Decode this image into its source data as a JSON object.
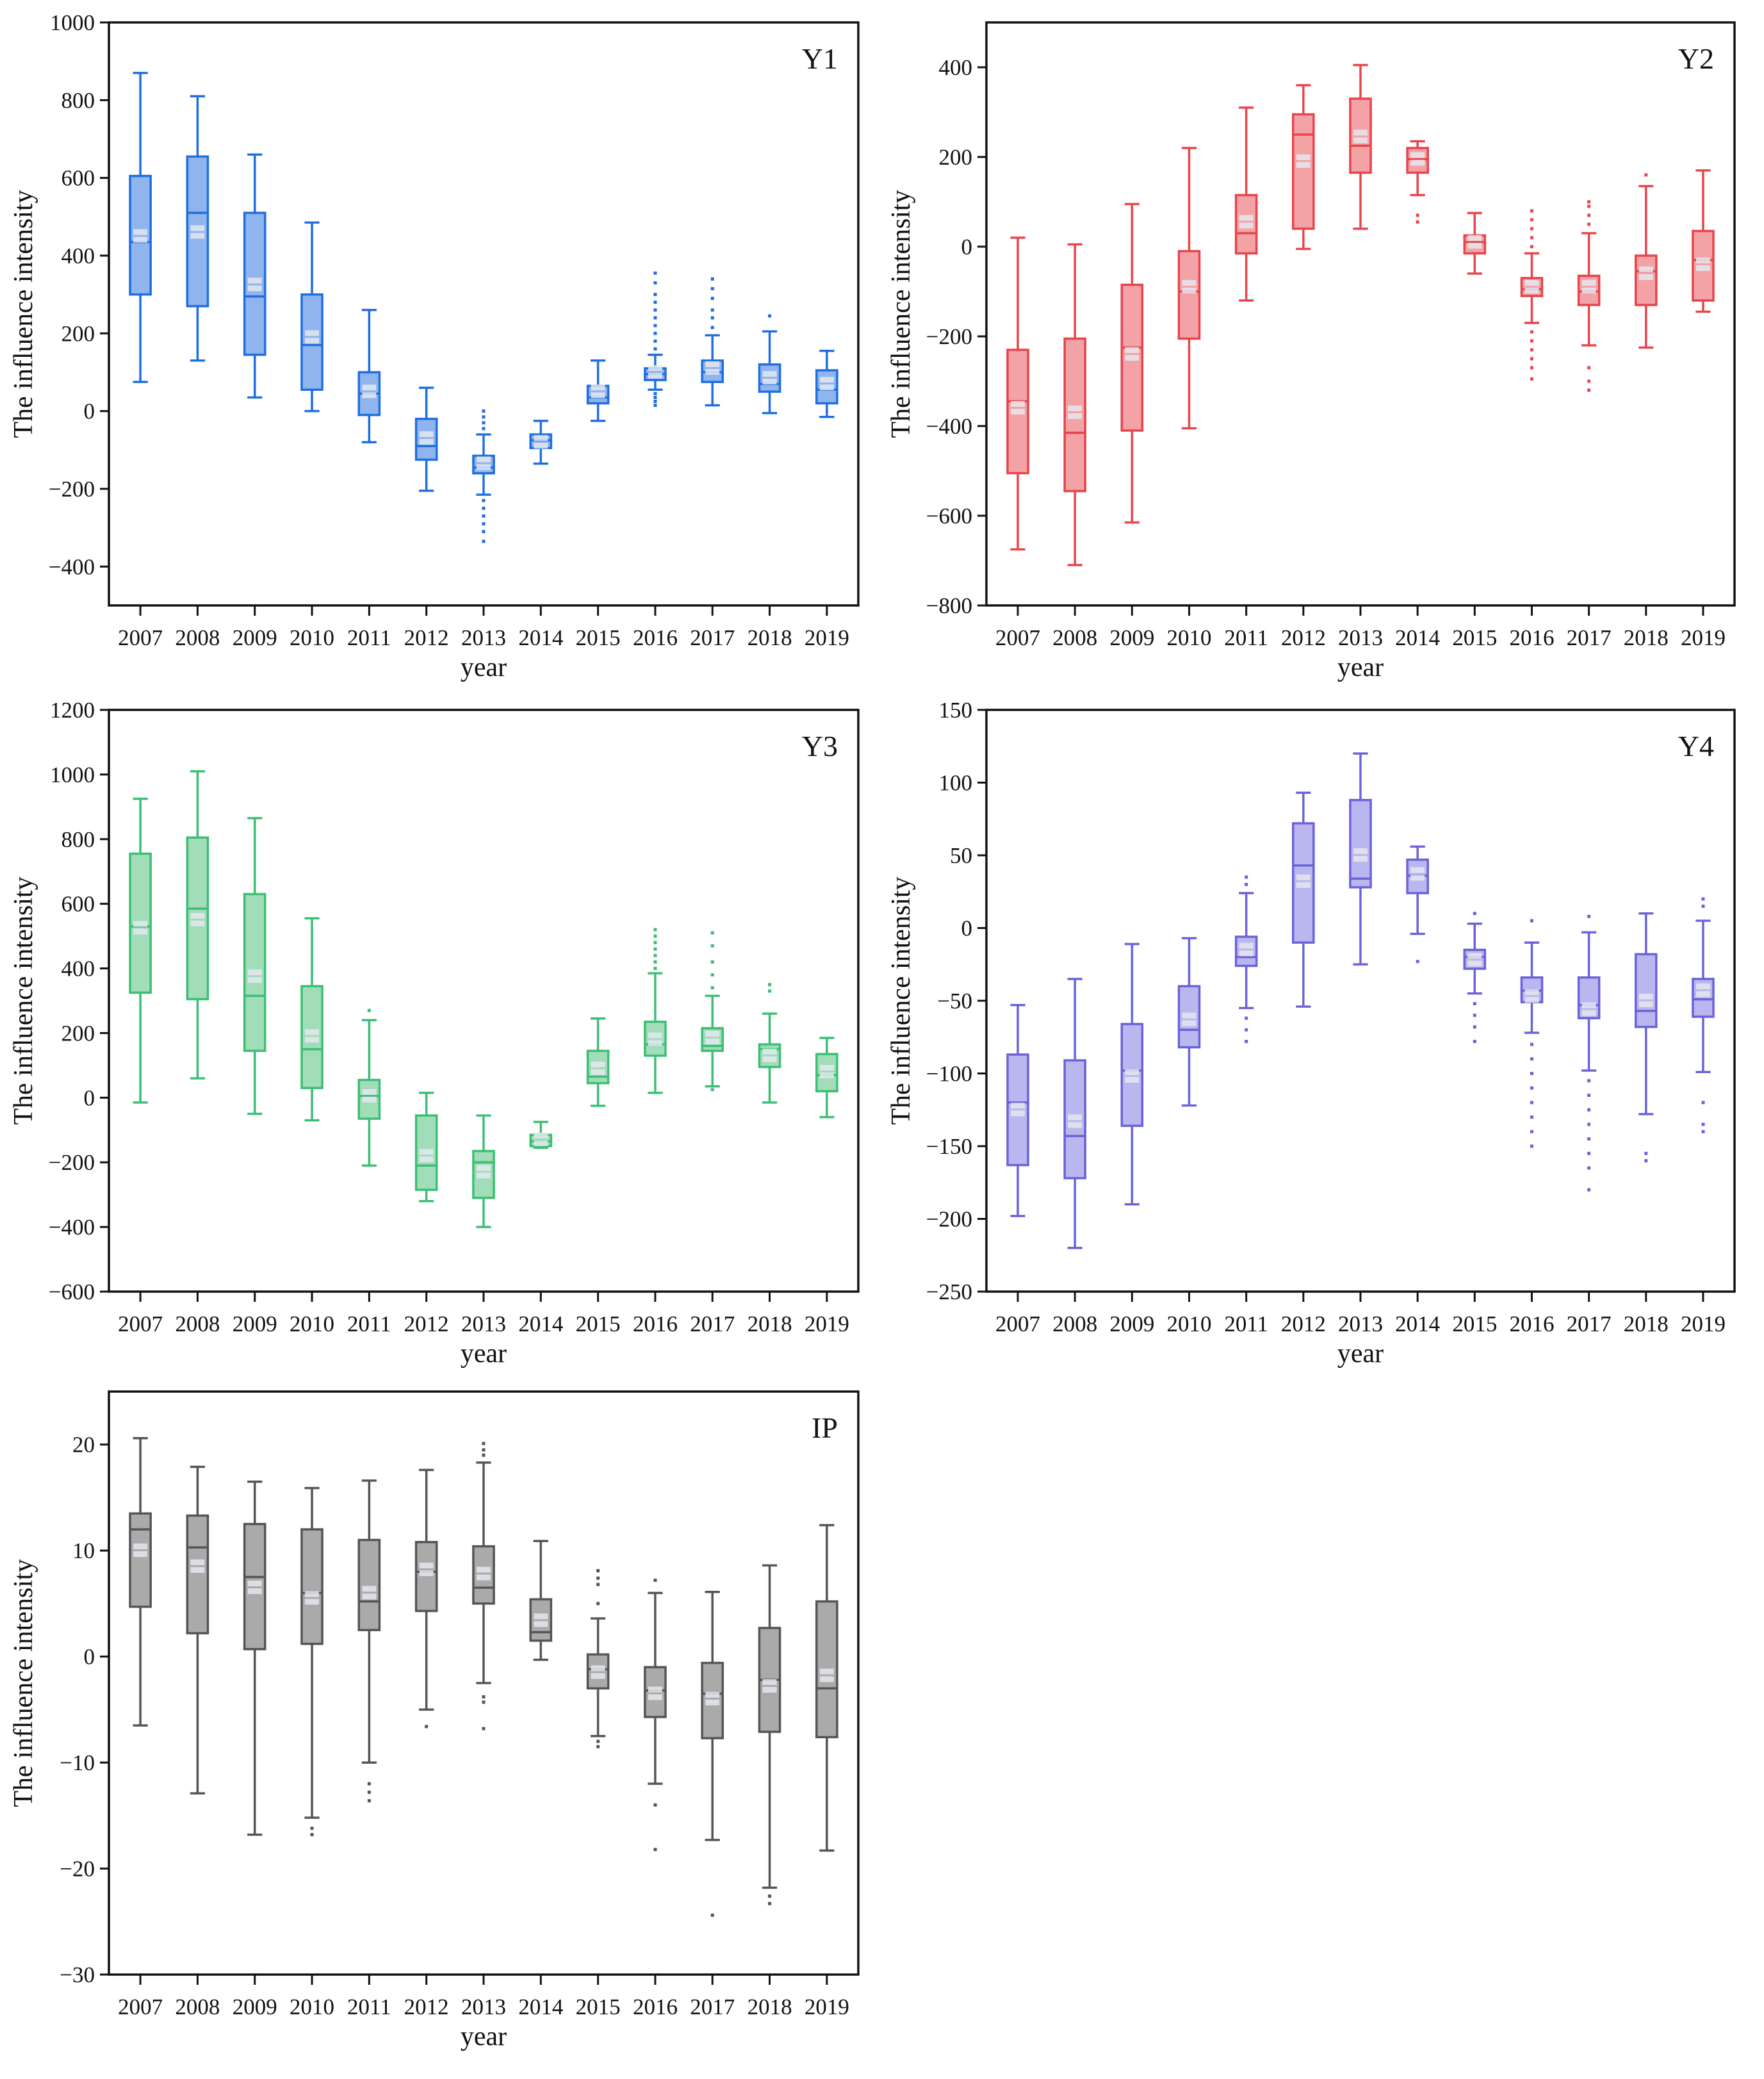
{
  "chart_data": [
    {
      "type": "boxplot",
      "title": "Y1",
      "xlabel": "year",
      "ylabel": "The influence intensity",
      "ylim": [
        -500,
        1000
      ],
      "yticks": [
        -400,
        -200,
        0,
        200,
        400,
        600,
        800,
        1000
      ],
      "color": "#1f6fe0",
      "fill": "#8fb4ee",
      "categories": [
        "2007",
        "2008",
        "2009",
        "2010",
        "2011",
        "2012",
        "2013",
        "2014",
        "2015",
        "2016",
        "2017",
        "2018",
        "2019"
      ],
      "boxes": [
        {
          "min": 75,
          "q1": 300,
          "median": 435,
          "q3": 605,
          "max": 870,
          "mean": 450,
          "outliers": []
        },
        {
          "min": 130,
          "q1": 270,
          "median": 510,
          "q3": 655,
          "max": 810,
          "mean": 460,
          "outliers": []
        },
        {
          "min": 35,
          "q1": 145,
          "median": 295,
          "q3": 510,
          "max": 660,
          "mean": 325,
          "outliers": []
        },
        {
          "min": 0,
          "q1": 55,
          "median": 170,
          "q3": 300,
          "max": 485,
          "mean": 190,
          "outliers": []
        },
        {
          "min": -80,
          "q1": -10,
          "median": 45,
          "q3": 100,
          "max": 260,
          "mean": 50,
          "outliers": []
        },
        {
          "min": -205,
          "q1": -125,
          "median": -90,
          "q3": -20,
          "max": 60,
          "mean": -70,
          "outliers": []
        },
        {
          "min": -215,
          "q1": -160,
          "median": -145,
          "q3": -115,
          "max": -60,
          "mean": -135,
          "outliers": [
            -230,
            -250,
            -270,
            -290,
            -310,
            -335,
            -45,
            -30,
            -15,
            0
          ]
        },
        {
          "min": -135,
          "q1": -95,
          "median": -75,
          "q3": -60,
          "max": -25,
          "mean": -80,
          "outliers": []
        },
        {
          "min": -25,
          "q1": 20,
          "median": 35,
          "q3": 65,
          "max": 130,
          "mean": 50,
          "outliers": []
        },
        {
          "min": 55,
          "q1": 80,
          "median": 95,
          "q3": 110,
          "max": 145,
          "mean": 100,
          "outliers": [
            160,
            180,
            200,
            220,
            240,
            260,
            280,
            300,
            330,
            355,
            45,
            35,
            25,
            15
          ]
        },
        {
          "min": 15,
          "q1": 75,
          "median": 100,
          "q3": 130,
          "max": 195,
          "mean": 110,
          "outliers": [
            215,
            240,
            260,
            290,
            315,
            340
          ]
        },
        {
          "min": -5,
          "q1": 50,
          "median": 70,
          "q3": 120,
          "max": 205,
          "mean": 85,
          "outliers": [
            245
          ]
        },
        {
          "min": -15,
          "q1": 20,
          "median": 55,
          "q3": 105,
          "max": 155,
          "mean": 70,
          "outliers": []
        }
      ]
    },
    {
      "type": "boxplot",
      "title": "Y2",
      "xlabel": "year",
      "ylabel": "The influence intensity",
      "ylim": [
        -800,
        500
      ],
      "yticks": [
        -800,
        -600,
        -400,
        -200,
        0,
        200,
        400
      ],
      "color": "#e8444c",
      "fill": "#f3a2a6",
      "categories": [
        "2007",
        "2008",
        "2009",
        "2010",
        "2011",
        "2012",
        "2013",
        "2014",
        "2015",
        "2016",
        "2017",
        "2018",
        "2019"
      ],
      "boxes": [
        {
          "min": -675,
          "q1": -505,
          "median": -345,
          "q3": -230,
          "max": 20,
          "mean": -360,
          "outliers": []
        },
        {
          "min": -710,
          "q1": -545,
          "median": -415,
          "q3": -205,
          "max": 5,
          "mean": -370,
          "outliers": []
        },
        {
          "min": -615,
          "q1": -410,
          "median": -225,
          "q3": -85,
          "max": 95,
          "mean": -240,
          "outliers": []
        },
        {
          "min": -405,
          "q1": -205,
          "median": -100,
          "q3": -10,
          "max": 220,
          "mean": -90,
          "outliers": []
        },
        {
          "min": -120,
          "q1": -15,
          "median": 30,
          "q3": 115,
          "max": 310,
          "mean": 55,
          "outliers": []
        },
        {
          "min": -5,
          "q1": 40,
          "median": 250,
          "q3": 295,
          "max": 360,
          "mean": 190,
          "outliers": []
        },
        {
          "min": 40,
          "q1": 165,
          "median": 225,
          "q3": 330,
          "max": 405,
          "mean": 245,
          "outliers": []
        },
        {
          "min": 115,
          "q1": 165,
          "median": 195,
          "q3": 220,
          "max": 235,
          "mean": 195,
          "outliers": [
            70,
            55
          ]
        },
        {
          "min": -60,
          "q1": -15,
          "median": 10,
          "q3": 25,
          "max": 75,
          "mean": 10,
          "outliers": []
        },
        {
          "min": -170,
          "q1": -110,
          "median": -95,
          "q3": -70,
          "max": -15,
          "mean": -90,
          "outliers": [
            -190,
            -210,
            -230,
            -250,
            -270,
            -295,
            0,
            20,
            40,
            60,
            80
          ]
        },
        {
          "min": -220,
          "q1": -130,
          "median": -100,
          "q3": -65,
          "max": 30,
          "mean": -90,
          "outliers": [
            -270,
            -300,
            -320,
            50,
            70,
            90,
            100
          ]
        },
        {
          "min": -225,
          "q1": -130,
          "median": -55,
          "q3": -20,
          "max": 135,
          "mean": -60,
          "outliers": [
            160
          ]
        },
        {
          "min": -145,
          "q1": -120,
          "median": -30,
          "q3": 35,
          "max": 170,
          "mean": -40,
          "outliers": []
        }
      ]
    },
    {
      "type": "boxplot",
      "title": "Y3",
      "xlabel": "year",
      "ylabel": "The influence intensity",
      "ylim": [
        -600,
        1200
      ],
      "yticks": [
        -600,
        -400,
        -200,
        0,
        200,
        400,
        600,
        800,
        1000,
        1200
      ],
      "color": "#3cbf74",
      "fill": "#a0ddb8",
      "categories": [
        "2007",
        "2008",
        "2009",
        "2010",
        "2011",
        "2012",
        "2013",
        "2014",
        "2015",
        "2016",
        "2017",
        "2018",
        "2019"
      ],
      "boxes": [
        {
          "min": -15,
          "q1": 325,
          "median": 530,
          "q3": 755,
          "max": 925,
          "mean": 525,
          "outliers": []
        },
        {
          "min": 60,
          "q1": 305,
          "median": 585,
          "q3": 805,
          "max": 1010,
          "mean": 550,
          "outliers": []
        },
        {
          "min": -50,
          "q1": 145,
          "median": 315,
          "q3": 630,
          "max": 865,
          "mean": 375,
          "outliers": []
        },
        {
          "min": -70,
          "q1": 30,
          "median": 150,
          "q3": 345,
          "max": 555,
          "mean": 190,
          "outliers": []
        },
        {
          "min": -210,
          "q1": -65,
          "median": 5,
          "q3": 55,
          "max": 240,
          "mean": 5,
          "outliers": [
            270
          ]
        },
        {
          "min": -320,
          "q1": -285,
          "median": -210,
          "q3": -55,
          "max": 15,
          "mean": -180,
          "outliers": []
        },
        {
          "min": -400,
          "q1": -310,
          "median": -200,
          "q3": -165,
          "max": -55,
          "mean": -230,
          "outliers": []
        },
        {
          "min": -155,
          "q1": -150,
          "median": -135,
          "q3": -115,
          "max": -75,
          "mean": -130,
          "outliers": []
        },
        {
          "min": -25,
          "q1": 45,
          "median": 65,
          "q3": 145,
          "max": 245,
          "mean": 90,
          "outliers": []
        },
        {
          "min": 15,
          "q1": 130,
          "median": 165,
          "q3": 235,
          "max": 385,
          "mean": 180,
          "outliers": [
            400,
            420,
            440,
            460,
            480,
            500,
            520
          ]
        },
        {
          "min": 35,
          "q1": 145,
          "median": 160,
          "q3": 215,
          "max": 315,
          "mean": 185,
          "outliers": [
            340,
            380,
            420,
            470,
            510,
            25
          ]
        },
        {
          "min": -15,
          "q1": 95,
          "median": 150,
          "q3": 165,
          "max": 260,
          "mean": 130,
          "outliers": [
            330,
            350
          ]
        },
        {
          "min": -60,
          "q1": 20,
          "median": 70,
          "q3": 135,
          "max": 185,
          "mean": 80,
          "outliers": []
        }
      ]
    },
    {
      "type": "boxplot",
      "title": "Y4",
      "xlabel": "year",
      "ylabel": "The influence intensity",
      "ylim": [
        -250,
        150
      ],
      "yticks": [
        -250,
        -200,
        -150,
        -100,
        -50,
        0,
        50,
        100,
        150
      ],
      "color": "#6a63d9",
      "fill": "#bab6ef",
      "categories": [
        "2007",
        "2008",
        "2009",
        "2010",
        "2011",
        "2012",
        "2013",
        "2014",
        "2015",
        "2016",
        "2017",
        "2018",
        "2019"
      ],
      "boxes": [
        {
          "min": -198,
          "q1": -163,
          "median": -120,
          "q3": -87,
          "max": -53,
          "mean": -125,
          "outliers": []
        },
        {
          "min": -220,
          "q1": -172,
          "median": -143,
          "q3": -91,
          "max": -35,
          "mean": -133,
          "outliers": []
        },
        {
          "min": -190,
          "q1": -136,
          "median": -98,
          "q3": -66,
          "max": -11,
          "mean": -102,
          "outliers": []
        },
        {
          "min": -122,
          "q1": -82,
          "median": -70,
          "q3": -40,
          "max": -7,
          "mean": -63,
          "outliers": []
        },
        {
          "min": -55,
          "q1": -26,
          "median": -20,
          "q3": -6,
          "max": 24,
          "mean": -15,
          "outliers": [
            -62,
            -70,
            -78,
            30,
            35
          ]
        },
        {
          "min": -54,
          "q1": -10,
          "median": 43,
          "q3": 72,
          "max": 93,
          "mean": 32,
          "outliers": []
        },
        {
          "min": -25,
          "q1": 28,
          "median": 34,
          "q3": 88,
          "max": 120,
          "mean": 50,
          "outliers": []
        },
        {
          "min": -4,
          "q1": 24,
          "median": 36,
          "q3": 47,
          "max": 56,
          "mean": 37,
          "outliers": [
            -23
          ]
        },
        {
          "min": -45,
          "q1": -28,
          "median": -20,
          "q3": -15,
          "max": 3,
          "mean": -22,
          "outliers": [
            -52,
            -60,
            -68,
            -78,
            10
          ]
        },
        {
          "min": -72,
          "q1": -51,
          "median": -43,
          "q3": -34,
          "max": -10,
          "mean": -47,
          "outliers": [
            -80,
            -90,
            -100,
            -110,
            -120,
            -130,
            -140,
            -150,
            5
          ]
        },
        {
          "min": -98,
          "q1": -62,
          "median": -53,
          "q3": -34,
          "max": -3,
          "mean": -56,
          "outliers": [
            -105,
            -115,
            -125,
            -135,
            -145,
            -155,
            -165,
            -180,
            8
          ]
        },
        {
          "min": -128,
          "q1": -68,
          "median": -57,
          "q3": -18,
          "max": 10,
          "mean": -50,
          "outliers": [
            -155,
            -160
          ]
        },
        {
          "min": -99,
          "q1": -61,
          "median": -49,
          "q3": -35,
          "max": 5,
          "mean": -43,
          "outliers": [
            15,
            20,
            -120,
            -135,
            -140
          ]
        }
      ]
    },
    {
      "type": "boxplot",
      "title": "IP",
      "xlabel": "year",
      "ylabel": "The influence intensity",
      "ylim": [
        -30,
        25
      ],
      "yticks": [
        -30,
        -20,
        -10,
        0,
        10,
        20
      ],
      "color": "#555555",
      "fill": "#aaaaaa",
      "categories": [
        "2007",
        "2008",
        "2009",
        "2010",
        "2011",
        "2012",
        "2013",
        "2014",
        "2015",
        "2016",
        "2017",
        "2018",
        "2019"
      ],
      "boxes": [
        {
          "min": -6.5,
          "q1": 4.7,
          "median": 12,
          "q3": 13.5,
          "max": 20.6,
          "mean": 10,
          "outliers": []
        },
        {
          "min": -12.9,
          "q1": 2.2,
          "median": 10.3,
          "q3": 13.3,
          "max": 17.9,
          "mean": 8.5,
          "outliers": []
        },
        {
          "min": -16.8,
          "q1": 0.7,
          "median": 7.5,
          "q3": 12.5,
          "max": 16.5,
          "mean": 6.5,
          "outliers": []
        },
        {
          "min": -15.2,
          "q1": 1.2,
          "median": 6,
          "q3": 12,
          "max": 15.9,
          "mean": 5.5,
          "outliers": [
            -16.2,
            -16.8
          ]
        },
        {
          "min": -10,
          "q1": 2.5,
          "median": 5.2,
          "q3": 11,
          "max": 16.6,
          "mean": 6,
          "outliers": [
            -12,
            -12.8,
            -13.6
          ]
        },
        {
          "min": -5,
          "q1": 4.3,
          "median": 8,
          "q3": 10.8,
          "max": 17.6,
          "mean": 8.2,
          "outliers": [
            -6.6
          ]
        },
        {
          "min": -2.5,
          "q1": 5,
          "median": 6.5,
          "q3": 10.4,
          "max": 18.3,
          "mean": 7.8,
          "outliers": [
            19,
            19.5,
            20.1,
            -3.8,
            -4.3,
            -6.8
          ]
        },
        {
          "min": -0.3,
          "q1": 1.5,
          "median": 2.3,
          "q3": 5.4,
          "max": 10.9,
          "mean": 3.4,
          "outliers": []
        },
        {
          "min": -7.5,
          "q1": -3,
          "median": -1.2,
          "q3": 0.2,
          "max": 3.6,
          "mean": -1.5,
          "outliers": [
            5,
            6.8,
            7.4,
            8.1,
            -8,
            -8.5
          ]
        },
        {
          "min": -12,
          "q1": -5.7,
          "median": -3.2,
          "q3": -1,
          "max": 6,
          "mean": -3.5,
          "outliers": [
            7.2,
            -14,
            -18.2
          ]
        },
        {
          "min": -17.3,
          "q1": -7.7,
          "median": -3.5,
          "q3": -0.6,
          "max": 6.1,
          "mean": -4,
          "outliers": [
            -24.4
          ]
        },
        {
          "min": -21.8,
          "q1": -7.1,
          "median": -2.2,
          "q3": 2.7,
          "max": 8.6,
          "mean": -2.8,
          "outliers": [
            -22.6,
            -23.3
          ]
        },
        {
          "min": -18.3,
          "q1": -7.6,
          "median": -3,
          "q3": 5.2,
          "max": 12.4,
          "mean": -1.8,
          "outliers": []
        }
      ]
    }
  ]
}
